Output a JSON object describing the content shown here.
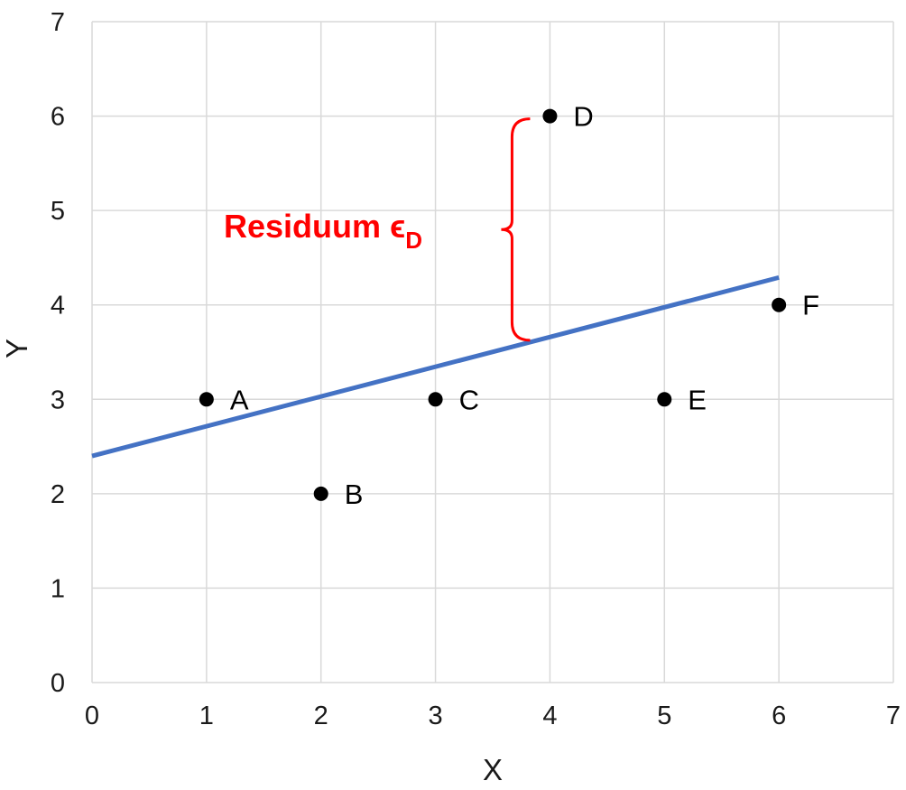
{
  "chart_data": {
    "type": "scatter",
    "xlabel": "X",
    "ylabel": "Y",
    "xlim": [
      0,
      7
    ],
    "ylim": [
      0,
      7
    ],
    "x_ticks": [
      0,
      1,
      2,
      3,
      4,
      5,
      6,
      7
    ],
    "y_ticks": [
      0,
      1,
      2,
      3,
      4,
      5,
      6,
      7
    ],
    "grid": true,
    "points": [
      {
        "label": "A",
        "x": 1,
        "y": 3
      },
      {
        "label": "B",
        "x": 2,
        "y": 2
      },
      {
        "label": "C",
        "x": 3,
        "y": 3
      },
      {
        "label": "D",
        "x": 4,
        "y": 6
      },
      {
        "label": "E",
        "x": 5,
        "y": 3
      },
      {
        "label": "F",
        "x": 6,
        "y": 4
      }
    ],
    "regression_line": {
      "x": [
        0,
        6
      ],
      "y": [
        2.4,
        4.29
      ]
    },
    "annotation": {
      "text": "Residuum ϵ",
      "subscript": "D",
      "point": "D",
      "color": "#ff0000"
    }
  },
  "colors": {
    "line": "#4472c4",
    "points": "#000000",
    "grid": "#d9d9d9",
    "annotation": "#ff0000"
  }
}
